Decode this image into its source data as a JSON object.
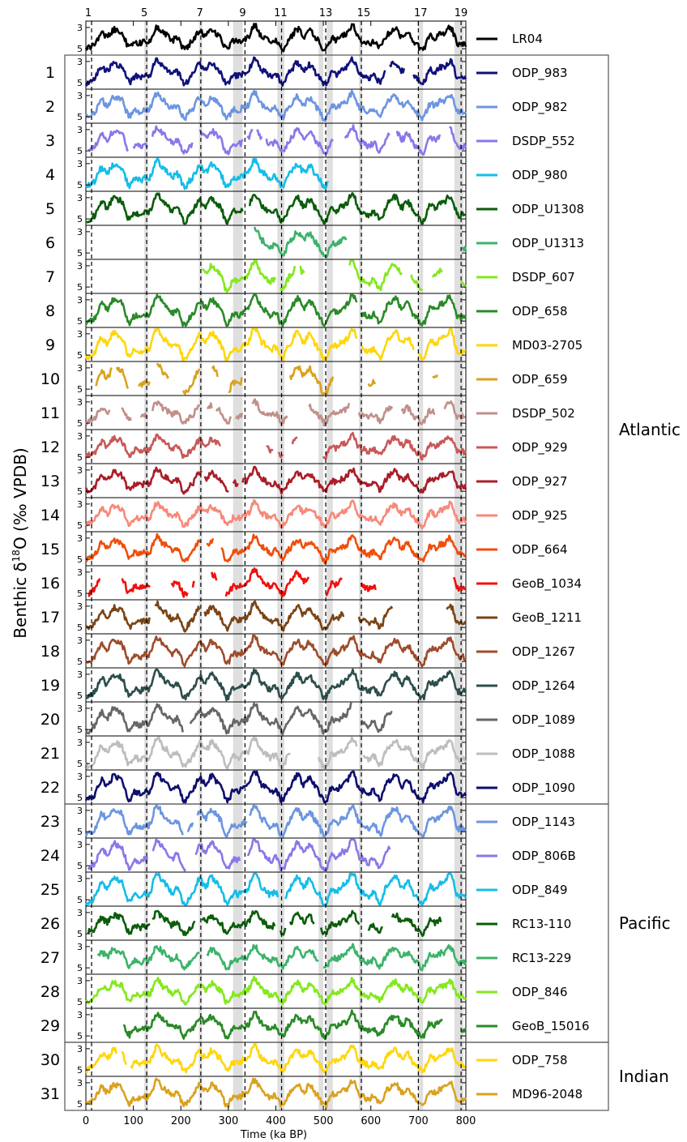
{
  "chart_data": {
    "type": "line",
    "title": "",
    "xlabel": "Time (ka BP)",
    "ylabel_prefix": "Benthic δ",
    "ylabel_sup": "18",
    "ylabel_suffix": "O (‰ VPDB)",
    "xlim": [
      0,
      800
    ],
    "x_ticks": [
      0,
      100,
      200,
      300,
      400,
      500,
      600,
      700,
      800
    ],
    "y_ticks": [
      3,
      5
    ],
    "ylim_inverted": [
      5.6,
      2.4
    ],
    "mis_labels": [
      {
        "label": "1",
        "x": 0
      },
      {
        "label": "5",
        "x": 123
      },
      {
        "label": "7",
        "x": 240
      },
      {
        "label": "9",
        "x": 330
      },
      {
        "label": "11",
        "x": 410
      },
      {
        "label": "13",
        "x": 505
      },
      {
        "label": "15",
        "x": 585
      },
      {
        "label": "17",
        "x": 705
      },
      {
        "label": "19",
        "x": 790
      }
    ],
    "dashed_lines": [
      12,
      128,
      242,
      335,
      412,
      505,
      580,
      700,
      790
    ],
    "shaded_bands": [
      [
        123,
        131
      ],
      [
        238,
        245
      ],
      [
        310,
        330
      ],
      [
        403,
        418
      ],
      [
        490,
        500
      ],
      [
        507,
        520
      ],
      [
        575,
        582
      ],
      [
        700,
        710
      ],
      [
        776,
        795
      ]
    ],
    "groups": [
      {
        "name": "Atlantic",
        "from": 1,
        "to": 22
      },
      {
        "name": "Pacific",
        "from": 23,
        "to": 29
      },
      {
        "name": "Indian",
        "from": 30,
        "to": 31
      }
    ],
    "series": [
      {
        "index": "",
        "name": "LR04",
        "color": "#000000",
        "segments": [
          [
            0,
            800
          ]
        ]
      },
      {
        "index": "1",
        "name": "ODP_983",
        "color": "#10117a",
        "segments": [
          [
            0,
            630
          ],
          [
            640,
            670
          ],
          [
            690,
            800
          ]
        ]
      },
      {
        "index": "2",
        "name": "ODP_982",
        "color": "#6c95e0",
        "segments": [
          [
            0,
            800
          ]
        ]
      },
      {
        "index": "3",
        "name": "DSDP_552",
        "color": "#8878e8",
        "segments": [
          [
            5,
            90
          ],
          [
            100,
            130
          ],
          [
            140,
            225
          ],
          [
            240,
            330
          ],
          [
            340,
            350
          ],
          [
            360,
            370
          ],
          [
            380,
            520
          ],
          [
            545,
            640
          ],
          [
            655,
            745
          ],
          [
            765,
            800
          ]
        ]
      },
      {
        "index": "4",
        "name": "ODP_980",
        "color": "#14bde8",
        "segments": [
          [
            0,
            510
          ]
        ]
      },
      {
        "index": "5",
        "name": "ODP_U1308",
        "color": "#0b5c0b",
        "segments": [
          [
            0,
            330
          ],
          [
            345,
            800
          ]
        ]
      },
      {
        "index": "6",
        "name": "ODP_U1313",
        "color": "#3cb36a",
        "segments": [
          [
            355,
            550
          ],
          [
            790,
            800
          ]
        ]
      },
      {
        "index": "7",
        "name": "DSDP_607",
        "color": "#84e81e",
        "segments": [
          [
            245,
            400
          ],
          [
            410,
            440
          ],
          [
            450,
            460
          ],
          [
            555,
            665
          ],
          [
            685,
            710
          ],
          [
            730,
            750
          ],
          [
            790,
            800
          ]
        ]
      },
      {
        "index": "8",
        "name": "ODP_658",
        "color": "#2a8a28",
        "segments": [
          [
            0,
            570
          ],
          [
            580,
            800
          ]
        ]
      },
      {
        "index": "9",
        "name": "MD03-2705",
        "color": "#ffd60a",
        "segments": [
          [
            0,
            570
          ],
          [
            580,
            690
          ],
          [
            700,
            800
          ]
        ]
      },
      {
        "index": "10",
        "name": "ODP_659",
        "color": "#d9a21f",
        "segments": [
          [
            20,
            55
          ],
          [
            65,
            90
          ],
          [
            110,
            135
          ],
          [
            150,
            175
          ],
          [
            205,
            240
          ],
          [
            265,
            280
          ],
          [
            300,
            330
          ],
          [
            430,
            520
          ],
          [
            595,
            610
          ],
          [
            730,
            740
          ]
        ]
      },
      {
        "index": "11",
        "name": "DSDP_502",
        "color": "#c08f8a",
        "segments": [
          [
            0,
            50
          ],
          [
            75,
            95
          ],
          [
            115,
            130
          ],
          [
            140,
            240
          ],
          [
            255,
            265
          ],
          [
            275,
            305
          ],
          [
            315,
            330
          ],
          [
            350,
            425
          ],
          [
            470,
            555
          ],
          [
            575,
            645
          ],
          [
            665,
            735
          ],
          [
            755,
            800
          ]
        ]
      },
      {
        "index": "12",
        "name": "ODP_929",
        "color": "#c85858",
        "segments": [
          [
            0,
            285
          ],
          [
            380,
            395
          ],
          [
            405,
            415
          ],
          [
            435,
            445
          ],
          [
            500,
            800
          ]
        ]
      },
      {
        "index": "13",
        "name": "ODP_927",
        "color": "#a81e28",
        "segments": [
          [
            0,
            245
          ],
          [
            250,
            300
          ],
          [
            310,
            320
          ],
          [
            330,
            800
          ]
        ]
      },
      {
        "index": "14",
        "name": "ODP_925",
        "color": "#f88878",
        "segments": [
          [
            0,
            800
          ]
        ]
      },
      {
        "index": "15",
        "name": "ODP_664",
        "color": "#f04e0a",
        "segments": [
          [
            0,
            240
          ],
          [
            255,
            270
          ],
          [
            285,
            800
          ]
        ]
      },
      {
        "index": "16",
        "name": "GeoB_1034",
        "color": "#f00f0f",
        "segments": [
          [
            5,
            30
          ],
          [
            75,
            135
          ],
          [
            180,
            215
          ],
          [
            225,
            230
          ],
          [
            265,
            275
          ],
          [
            295,
            470
          ],
          [
            505,
            540
          ],
          [
            580,
            610
          ],
          [
            775,
            800
          ]
        ]
      },
      {
        "index": "17",
        "name": "GeoB_1211",
        "color": "#7a4416",
        "segments": [
          [
            0,
            135
          ],
          [
            145,
            240
          ],
          [
            250,
            545
          ],
          [
            575,
            645
          ],
          [
            760,
            800
          ]
        ]
      },
      {
        "index": "18",
        "name": "ODP_1267",
        "color": "#9e4c2c",
        "segments": [
          [
            0,
            800
          ]
        ]
      },
      {
        "index": "19",
        "name": "ODP_1264",
        "color": "#2c4e4c",
        "segments": [
          [
            0,
            800
          ]
        ]
      },
      {
        "index": "20",
        "name": "ODP_1089",
        "color": "#666666",
        "segments": [
          [
            0,
            205
          ],
          [
            220,
            560
          ],
          [
            580,
            645
          ]
        ]
      },
      {
        "index": "21",
        "name": "ODP_1088",
        "color": "#bdbdbd",
        "segments": [
          [
            0,
            430
          ],
          [
            490,
            570
          ],
          [
            585,
            800
          ]
        ]
      },
      {
        "index": "22",
        "name": "ODP_1090",
        "color": "#0e0e6e",
        "segments": [
          [
            0,
            800
          ]
        ]
      },
      {
        "index": "23",
        "name": "ODP_1143",
        "color": "#6c95e0",
        "segments": [
          [
            0,
            205
          ],
          [
            215,
            225
          ],
          [
            235,
            340
          ],
          [
            345,
            800
          ]
        ]
      },
      {
        "index": "24",
        "name": "ODP_806B",
        "color": "#8878e8",
        "segments": [
          [
            5,
            130
          ],
          [
            140,
            210
          ],
          [
            230,
            325
          ],
          [
            340,
            640
          ]
        ]
      },
      {
        "index": "25",
        "name": "ODP_849",
        "color": "#14bde8",
        "segments": [
          [
            0,
            405
          ],
          [
            420,
            800
          ]
        ]
      },
      {
        "index": "26",
        "name": "RC13-110",
        "color": "#0b5c0b",
        "segments": [
          [
            5,
            135
          ],
          [
            140,
            230
          ],
          [
            245,
            400
          ],
          [
            410,
            420
          ],
          [
            430,
            480
          ],
          [
            495,
            575
          ],
          [
            595,
            625
          ],
          [
            645,
            750
          ]
        ]
      },
      {
        "index": "27",
        "name": "RC13-229",
        "color": "#3cb36a",
        "segments": [
          [
            25,
            240
          ],
          [
            255,
            490
          ],
          [
            500,
            800
          ]
        ]
      },
      {
        "index": "28",
        "name": "ODP_846",
        "color": "#84e81e",
        "segments": [
          [
            0,
            800
          ]
        ]
      },
      {
        "index": "29",
        "name": "GeoB_15016",
        "color": "#2a8a28",
        "segments": [
          [
            80,
            750
          ],
          [
            790,
            800
          ]
        ]
      },
      {
        "index": "30",
        "name": "ODP_758",
        "color": "#ffd60a",
        "segments": [
          [
            0,
            65
          ],
          [
            75,
            85
          ],
          [
            95,
            800
          ]
        ]
      },
      {
        "index": "31",
        "name": "MD96-2048",
        "color": "#d9a21f",
        "segments": [
          [
            0,
            800
          ]
        ]
      }
    ]
  }
}
